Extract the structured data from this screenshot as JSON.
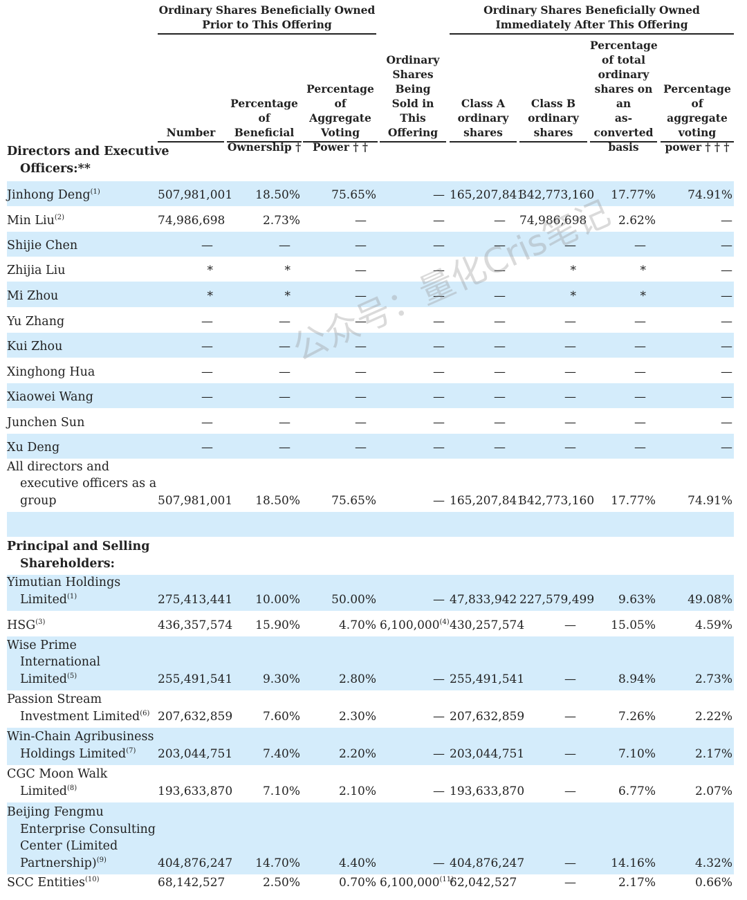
{
  "header": {
    "group_prior": [
      "Ordinary Shares Beneficially Owned",
      "Prior to This Offering"
    ],
    "group_after": [
      "Ordinary Shares Beneficially Owned",
      "Immediately After This Offering"
    ],
    "columns": [
      [
        "Number"
      ],
      [
        "Percentage of",
        "Beneficial",
        "Ownership †"
      ],
      [
        "Percentage of",
        "Aggregate",
        "Voting",
        "Power † †"
      ],
      [
        "Ordinary",
        "Shares",
        "Being",
        "Sold in",
        "This",
        "Offering"
      ],
      [
        "Class A",
        "ordinary",
        "shares"
      ],
      [
        "Class B",
        "ordinary",
        "shares"
      ],
      [
        "Percentage",
        "of total",
        "ordinary",
        "shares on an",
        "as-",
        "converted",
        "basis"
      ],
      [
        "Percentage of",
        "aggregate",
        "voting",
        "power † † †"
      ]
    ]
  },
  "sections": {
    "directors": [
      "Directors and Executive",
      "Officers:**"
    ],
    "principal": [
      "Principal and Selling",
      "Shareholders:"
    ]
  },
  "rows": [
    {
      "name": [
        "Jinhong Deng"
      ],
      "sup": "(1)",
      "shade": true,
      "top": 262,
      "h": 36,
      "values": [
        "507,981,001",
        "18.50%",
        "75.65%",
        "—",
        "165,207,841",
        "342,773,160",
        "17.77%",
        "74.91%"
      ]
    },
    {
      "name": [
        "Min Liu"
      ],
      "sup": "(2)",
      "shade": false,
      "top": 298,
      "h": 37,
      "values": [
        "74,986,698",
        "2.73%",
        "—",
        "—",
        "—",
        "74,986,698",
        "2.62%",
        "—"
      ]
    },
    {
      "name": [
        "Shijie Chen"
      ],
      "shade": true,
      "top": 335,
      "h": 36,
      "values": [
        "—",
        "—",
        "—",
        "—",
        "—",
        "—",
        "—",
        "—"
      ]
    },
    {
      "name": [
        "Zhijia Liu"
      ],
      "shade": false,
      "top": 371,
      "h": 36,
      "values": [
        "*",
        "*",
        "—",
        "—",
        "—",
        "*",
        "*",
        "—"
      ]
    },
    {
      "name": [
        "Mi Zhou"
      ],
      "shade": true,
      "top": 407,
      "h": 37,
      "values": [
        "*",
        "*",
        "—",
        "—",
        "—",
        "*",
        "*",
        "—"
      ]
    },
    {
      "name": [
        "Yu Zhang"
      ],
      "shade": false,
      "top": 444,
      "h": 37,
      "values": [
        "—",
        "—",
        "—",
        "—",
        "—",
        "—",
        "—",
        "—"
      ]
    },
    {
      "name": [
        "Kui Zhou"
      ],
      "shade": true,
      "top": 481,
      "h": 36,
      "values": [
        "—",
        "—",
        "—",
        "—",
        "—",
        "—",
        "—",
        "—"
      ]
    },
    {
      "name": [
        "Xinghong Hua"
      ],
      "shade": false,
      "top": 517,
      "h": 37,
      "values": [
        "—",
        "—",
        "—",
        "—",
        "—",
        "—",
        "—",
        "—"
      ]
    },
    {
      "name": [
        "Xiaowei Wang"
      ],
      "shade": true,
      "top": 554,
      "h": 36,
      "values": [
        "—",
        "—",
        "—",
        "—",
        "—",
        "—",
        "—",
        "—"
      ]
    },
    {
      "name": [
        "Junchen Sun"
      ],
      "shade": false,
      "top": 590,
      "h": 37,
      "values": [
        "—",
        "—",
        "—",
        "—",
        "—",
        "—",
        "—",
        "—"
      ]
    },
    {
      "name": [
        "Xu Deng"
      ],
      "shade": true,
      "top": 627,
      "h": 36,
      "values": [
        "—",
        "—",
        "—",
        "—",
        "—",
        "—",
        "—",
        "—"
      ]
    },
    {
      "name": [
        "All directors and",
        "executive officers as a",
        "group"
      ],
      "shade": false,
      "top": 663,
      "h": 77,
      "values": [
        "507,981,001",
        "18.50%",
        "75.65%",
        "—",
        "165,207,841",
        "342,773,160",
        "17.77%",
        "74.91%"
      ]
    },
    {
      "name": [],
      "shade": true,
      "top": 740,
      "h": 36,
      "values": []
    },
    {
      "name": [
        "Yimutian Holdings",
        "Limited"
      ],
      "sup": "(1)",
      "shade": true,
      "top": 831,
      "h": 52,
      "values": [
        "275,413,441",
        "10.00%",
        "50.00%",
        "—",
        "47,833,942",
        "227,579,499",
        "9.63%",
        "49.08%"
      ]
    },
    {
      "name": [
        "HSG"
      ],
      "sup": "(3)",
      "shade": false,
      "top": 883,
      "h": 37,
      "values": [
        "436,357,574",
        "15.90%",
        "4.70%",
        "6,100,000",
        "430,257,574",
        "—",
        "15.05%",
        "4.59%"
      ],
      "v4sup": "(4)"
    },
    {
      "name": [
        "Wise Prime",
        "International",
        "Limited"
      ],
      "sup": "(5)",
      "shade": true,
      "top": 920,
      "h": 78,
      "values": [
        "255,491,541",
        "9.30%",
        "2.80%",
        "—",
        "255,491,541",
        "—",
        "8.94%",
        "2.73%"
      ]
    },
    {
      "name": [
        "Passion Stream",
        "Investment Limited"
      ],
      "sup": "(6)",
      "shade": false,
      "top": 998,
      "h": 54,
      "values": [
        "207,632,859",
        "7.60%",
        "2.30%",
        "—",
        "207,632,859",
        "—",
        "7.26%",
        "2.22%"
      ]
    },
    {
      "name": [
        "Win-Chain Agribusiness",
        "Holdings Limited"
      ],
      "sup": "(7)",
      "shade": true,
      "top": 1052,
      "h": 54,
      "values": [
        "203,044,751",
        "7.40%",
        "2.20%",
        "—",
        "203,044,751",
        "—",
        "7.10%",
        "2.17%"
      ]
    },
    {
      "name": [
        "CGC Moon Walk",
        "Limited"
      ],
      "sup": "(8)",
      "shade": false,
      "top": 1106,
      "h": 54,
      "values": [
        "193,633,870",
        "7.10%",
        "2.10%",
        "—",
        "193,633,870",
        "—",
        "6.77%",
        "2.07%"
      ]
    },
    {
      "name": [
        "Beijing Fengmu",
        "Enterprise Consulting",
        "Center (Limited",
        "Partnership)"
      ],
      "sup": "(9)",
      "shade": true,
      "top": 1160,
      "h": 104,
      "values": [
        "404,876,247",
        "14.70%",
        "4.40%",
        "—",
        "404,876,247",
        "—",
        "14.16%",
        "4.32%"
      ]
    },
    {
      "name": [
        "SCC Entities"
      ],
      "sup": "(10)",
      "shade": false,
      "top": 1264,
      "h": 28,
      "values": [
        "68,142,527",
        "2.50%",
        "0.70%",
        "6,100,000",
        "62,042,527",
        "—",
        "2.17%",
        "0.66%"
      ],
      "v4sup": "(11)"
    }
  ],
  "watermark": "公众号：量化Cris笔记"
}
